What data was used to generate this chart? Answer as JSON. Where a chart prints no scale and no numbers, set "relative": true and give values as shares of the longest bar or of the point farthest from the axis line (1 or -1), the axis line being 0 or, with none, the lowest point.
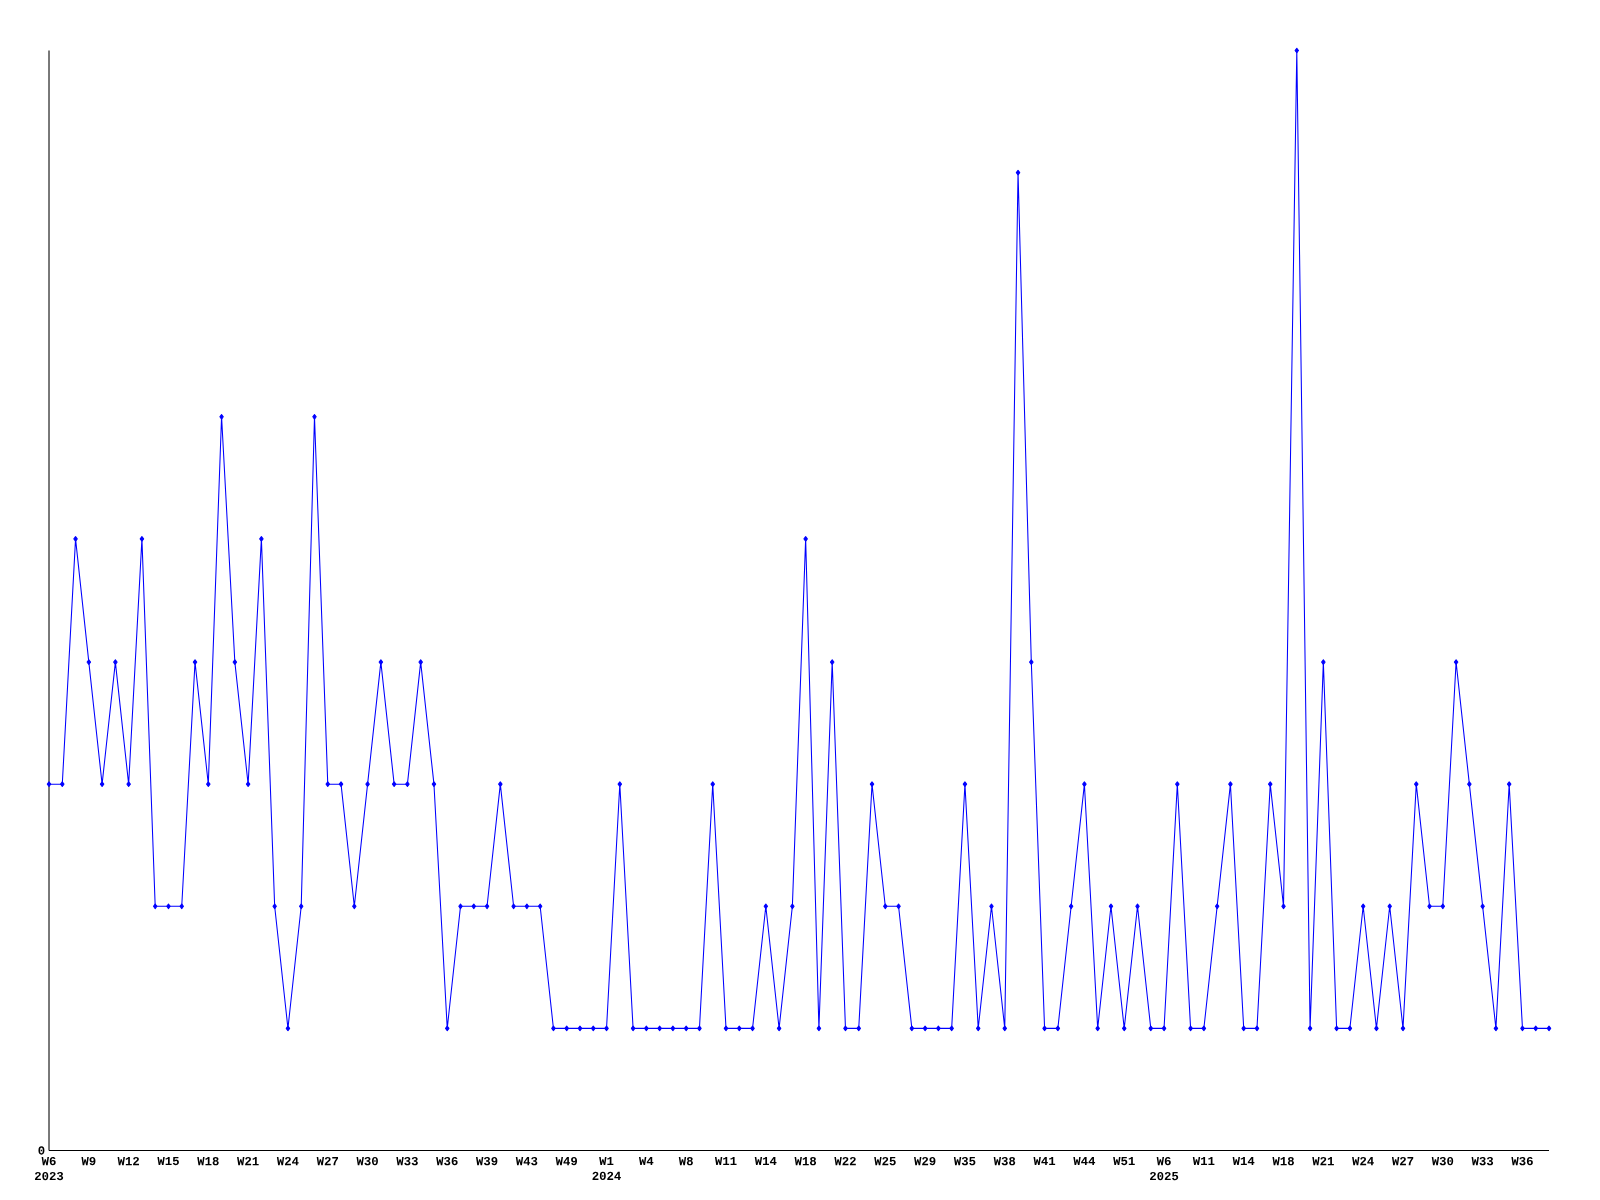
{
  "chart_data": {
    "type": "line",
    "relative": true,
    "annotations": [
      "0"
    ],
    "color": "#0000ff",
    "marker": "diamond",
    "line_style": "solid",
    "categories": [
      "W6 2023",
      null,
      null,
      "W9",
      null,
      null,
      "W12",
      null,
      null,
      "W15",
      null,
      null,
      "W18",
      null,
      null,
      "W21",
      null,
      null,
      "W24",
      null,
      null,
      "W27",
      null,
      null,
      "W30",
      null,
      null,
      "W33",
      null,
      null,
      "W36",
      null,
      null,
      "W39",
      null,
      null,
      "W43",
      null,
      null,
      "W49",
      null,
      null,
      "W1 2024",
      null,
      null,
      "W4",
      null,
      null,
      "W8",
      null,
      null,
      "W11",
      null,
      null,
      "W14",
      null,
      null,
      "W18",
      null,
      null,
      "W22",
      null,
      null,
      "W25",
      null,
      null,
      "W29",
      null,
      null,
      "W35",
      null,
      null,
      "W38",
      null,
      null,
      "W41",
      null,
      null,
      "W44",
      null,
      null,
      "W51",
      null,
      null,
      "W6 2025",
      null,
      null,
      "W11",
      null,
      null,
      "W14",
      null,
      null,
      "W18",
      null,
      null,
      "W21",
      null,
      null,
      "W24",
      null,
      null,
      "W27",
      null,
      null,
      "W30",
      null,
      null,
      "W33",
      null,
      null,
      "W36",
      null,
      null
    ],
    "values": [
      0.333,
      0.333,
      0.556,
      0.444,
      0.333,
      0.444,
      0.333,
      0.556,
      0.222,
      0.222,
      0.222,
      0.444,
      0.333,
      0.667,
      0.444,
      0.333,
      0.556,
      0.222,
      0.111,
      0.222,
      0.667,
      0.333,
      0.333,
      0.222,
      0.333,
      0.444,
      0.333,
      0.333,
      0.444,
      0.333,
      0.111,
      0.222,
      0.222,
      0.222,
      0.333,
      0.222,
      0.222,
      0.222,
      0.111,
      0.111,
      0.111,
      0.111,
      0.111,
      0.333,
      0.111,
      0.111,
      0.111,
      0.111,
      0.111,
      0.111,
      0.333,
      0.111,
      0.111,
      0.111,
      0.222,
      0.111,
      0.222,
      0.556,
      0.111,
      0.444,
      0.111,
      0.111,
      0.333,
      0.222,
      0.222,
      0.111,
      0.111,
      0.111,
      0.111,
      0.333,
      0.111,
      0.222,
      0.111,
      0.889,
      0.444,
      0.111,
      0.111,
      0.222,
      0.333,
      0.111,
      0.222,
      0.111,
      0.222,
      0.111,
      0.111,
      0.333,
      0.111,
      0.111,
      0.222,
      0.333,
      0.111,
      0.111,
      0.333,
      0.222,
      1,
      0.111,
      0.444,
      0.111,
      0.111,
      0.222,
      0.111,
      0.222,
      0.111,
      0.333,
      0.222,
      0.222,
      0.444,
      0.333,
      0.222,
      0.111,
      0.333,
      0.111,
      0.111,
      0.111
    ]
  }
}
